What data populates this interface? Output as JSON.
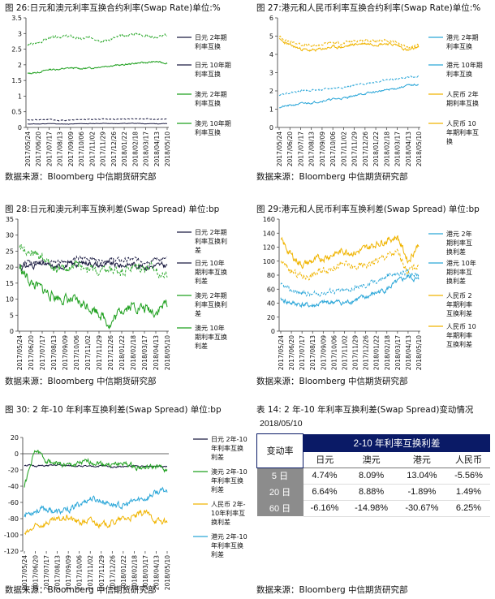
{
  "source_text": "数据来源：Bloomberg  中信期货研究部",
  "colors": {
    "jpy2": "#1a1a40",
    "jpy10": "#1a1a40",
    "aud2": "#1fa01f",
    "aud10": "#2faa2f",
    "hkd2": "#2aa6d8",
    "hkd10": "#2aa6d8",
    "cny2": "#f0b400",
    "cny10": "#f0b400",
    "grid": "#d9d9d9",
    "axis": "#333333"
  },
  "chart_data": [
    {
      "id": "c1",
      "type": "line",
      "title": "图 26:日元和澳元利率互换合约利率(Swap Rate)单位:%",
      "ylim": [
        0,
        3.5
      ],
      "yticks": [
        "0",
        "0.5",
        "1",
        "1.5",
        "2",
        "2.5",
        "3",
        "3.5"
      ],
      "ytick_values": [
        0,
        0.5,
        1,
        1.5,
        2,
        2.5,
        3,
        3.5
      ],
      "xlabels": [
        "2017/05/24",
        "2017/06/20",
        "2017/07/17",
        "2017/08/13",
        "2017/09/09",
        "2017/10/06",
        "2017/11/02",
        "2017/11/29",
        "2017/12/26",
        "2018/01/22",
        "2018/02/18",
        "2018/03/17",
        "2018/04/13",
        "2018/05/10"
      ],
      "series": [
        {
          "name": "日元 2年期利率互换",
          "style": "solid",
          "color_key": "jpy2",
          "n": 250,
          "anchors": [
            0.11,
            0.11,
            0.12,
            0.11,
            0.11,
            0.12,
            0.12,
            0.13,
            0.12,
            0.13,
            0.13,
            0.12,
            0.12,
            0.12
          ],
          "noise": 0.006,
          "seed": 11
        },
        {
          "name": "日元 10年期利率互换",
          "style": "dash",
          "color_key": "jpy10",
          "n": 250,
          "anchors": [
            0.25,
            0.23,
            0.26,
            0.22,
            0.24,
            0.26,
            0.25,
            0.27,
            0.26,
            0.27,
            0.28,
            0.27,
            0.26,
            0.26
          ],
          "noise": 0.012,
          "seed": 12
        },
        {
          "name": "澳元 2年期利率互换",
          "style": "solid",
          "color_key": "aud2",
          "n": 250,
          "anchors": [
            1.72,
            1.76,
            1.85,
            1.86,
            1.9,
            1.88,
            1.9,
            1.95,
            1.98,
            2.0,
            2.05,
            2.07,
            2.1,
            2.05
          ],
          "noise": 0.02,
          "seed": 13
        },
        {
          "name": "澳元 10年期利率互换",
          "style": "dash",
          "color_key": "aud10",
          "n": 250,
          "anchors": [
            2.62,
            2.7,
            2.85,
            2.9,
            2.9,
            2.82,
            2.88,
            2.75,
            2.85,
            2.92,
            3.0,
            2.93,
            2.88,
            2.95
          ],
          "noise": 0.035,
          "seed": 14
        }
      ]
    },
    {
      "id": "c2",
      "type": "line",
      "title": "图 27:港元和人民币利率互换合约利率(Swap Rate)单位:%",
      "ylim": [
        0,
        6
      ],
      "yticks": [
        "0",
        "1",
        "2",
        "3",
        "4",
        "5",
        "6"
      ],
      "ytick_values": [
        0,
        1,
        2,
        3,
        4,
        5,
        6
      ],
      "xlabels": [
        "2017/05/24",
        "2017/06/20",
        "2017/07/17",
        "2017/08/13",
        "2017/09/09",
        "2017/10/06",
        "2017/11/02",
        "2017/11/29",
        "2017/12/26",
        "2018/01/22",
        "2018/02/18",
        "2018/03/17",
        "2018/04/13",
        "2018/05/10"
      ],
      "series": [
        {
          "name": "港元 2年期利率互换",
          "style": "solid",
          "color_key": "hkd2",
          "n": 250,
          "anchors": [
            1.1,
            1.2,
            1.3,
            1.35,
            1.45,
            1.55,
            1.6,
            1.75,
            1.85,
            1.95,
            2.05,
            2.15,
            2.3,
            2.35
          ],
          "noise": 0.04,
          "seed": 21
        },
        {
          "name": "港元 10年期利率互换",
          "style": "dash",
          "color_key": "hkd10",
          "n": 250,
          "anchors": [
            1.8,
            1.9,
            2.0,
            2.05,
            2.05,
            2.15,
            2.2,
            2.3,
            2.4,
            2.5,
            2.6,
            2.65,
            2.75,
            2.8
          ],
          "noise": 0.04,
          "seed": 22
        },
        {
          "name": "人民币 2年期利率互换",
          "style": "solid",
          "color_key": "cny2",
          "n": 250,
          "anchors": [
            4.8,
            4.5,
            4.3,
            4.2,
            4.3,
            4.4,
            4.4,
            4.55,
            4.6,
            4.55,
            4.6,
            4.5,
            4.2,
            4.4
          ],
          "noise": 0.06,
          "seed": 23
        },
        {
          "name": "人民币 10年期利率互换",
          "style": "dash",
          "color_key": "cny10",
          "n": 250,
          "anchors": [
            4.95,
            4.7,
            4.55,
            4.45,
            4.55,
            4.65,
            4.6,
            4.75,
            4.8,
            4.7,
            4.75,
            4.65,
            4.35,
            4.55
          ],
          "noise": 0.06,
          "seed": 24
        }
      ]
    },
    {
      "id": "c3",
      "type": "line",
      "title": "图 28:日元和澳元利率互换利差(Swap Spread)    单位:bp",
      "ylim": [
        0,
        35
      ],
      "yticks": [
        "0",
        "5",
        "10",
        "15",
        "20",
        "25",
        "30",
        "35"
      ],
      "ytick_values": [
        0,
        5,
        10,
        15,
        20,
        25,
        30,
        35
      ],
      "xlabels": [
        "2017/05/24",
        "2017/06/20",
        "2017/07/17",
        "2017/08/13",
        "2017/09/09",
        "2017/10/06",
        "2017/11/02",
        "2017/11/29",
        "2017/12/26",
        "2018/01/22",
        "2018/02/18",
        "2018/03/17",
        "2018/04/13",
        "2018/05/10"
      ],
      "series": [
        {
          "name": "日元 2年期利率互换利差",
          "style": "solid",
          "color_key": "jpy2",
          "n": 250,
          "anchors": [
            20,
            20.5,
            21,
            20,
            20.5,
            21,
            21.5,
            20.5,
            21,
            20.5,
            21,
            20,
            20.5,
            20.5
          ],
          "noise": 0.7,
          "seed": 31
        },
        {
          "name": "日元 10年期利率互换利差",
          "style": "dash",
          "color_key": "jpy10",
          "n": 250,
          "anchors": [
            21,
            21.5,
            22,
            21.5,
            22,
            22.5,
            23,
            22,
            22.5,
            22,
            22.5,
            22,
            22.5,
            22.5
          ],
          "noise": 0.6,
          "seed": 32
        },
        {
          "name": "澳元 2年期利率互换利差",
          "style": "solid",
          "color_key": "aud2",
          "n": 250,
          "anchors": [
            20,
            15,
            13,
            11,
            10,
            9,
            8,
            6,
            2,
            7,
            8,
            7,
            6,
            9
          ],
          "noise": 1.3,
          "seed": 33
        },
        {
          "name": "澳元 10年期利率互换利差",
          "style": "dash",
          "color_key": "aud10",
          "n": 250,
          "anchors": [
            27,
            25,
            23,
            20,
            19,
            21,
            20,
            18,
            19,
            19,
            20,
            20,
            19,
            17
          ],
          "noise": 1.2,
          "seed": 34
        }
      ]
    },
    {
      "id": "c4",
      "type": "line",
      "title": "图 29:港元和人民币利率互换利差(Swap Spread)   单位:bp",
      "ylim": [
        0,
        160
      ],
      "yticks": [
        "0",
        "20",
        "40",
        "60",
        "80",
        "100",
        "120",
        "140",
        "160"
      ],
      "ytick_values": [
        0,
        20,
        40,
        60,
        80,
        100,
        120,
        140,
        160
      ],
      "xlabels": [
        "2017/05/24",
        "2017/06/20",
        "2017/07/17",
        "2017/08/13",
        "2017/09/09",
        "2017/10/06",
        "2017/11/02",
        "2017/11/29",
        "2017/12/26",
        "2018/01/22",
        "2018/02/18",
        "2018/03/17",
        "2018/04/13",
        "2018/05/10"
      ],
      "series": [
        {
          "name": "港元 2年期利率互换利差",
          "style": "solid",
          "color_key": "hkd2",
          "n": 250,
          "anchors": [
            45,
            40,
            38,
            36,
            40,
            42,
            40,
            45,
            48,
            55,
            60,
            70,
            78,
            72
          ],
          "noise": 3,
          "seed": 41
        },
        {
          "name": "港元 10年期利率互换利差",
          "style": "dash",
          "color_key": "hkd10",
          "n": 250,
          "anchors": [
            65,
            58,
            55,
            52,
            55,
            58,
            57,
            62,
            65,
            72,
            78,
            82,
            85,
            80
          ],
          "noise": 3,
          "seed": 42
        },
        {
          "name": "人民币 2年期利率互换利差",
          "style": "solid",
          "color_key": "cny2",
          "n": 250,
          "anchors": [
            130,
            108,
            95,
            100,
            105,
            110,
            115,
            112,
            118,
            125,
            130,
            135,
            100,
            125
          ],
          "noise": 4,
          "seed": 43
        },
        {
          "name": "人民币 10年期利率互换利差",
          "style": "dash",
          "color_key": "cny10",
          "n": 250,
          "anchors": [
            100,
            85,
            78,
            80,
            88,
            92,
            95,
            90,
            95,
            100,
            108,
            112,
            85,
            95
          ],
          "noise": 4,
          "seed": 44
        }
      ]
    },
    {
      "id": "c5",
      "type": "line",
      "title": "图 30: 2 年-10 年利率互换利差(Swap Spread)     单位:bp",
      "ylim": [
        -120,
        20
      ],
      "yticks": [
        "-120",
        "-100",
        "-80",
        "-60",
        "-40",
        "-20",
        "0",
        "20"
      ],
      "ytick_values": [
        -120,
        -100,
        -80,
        -60,
        -40,
        -20,
        0,
        20
      ],
      "xlabels": [
        "2017/05/24",
        "2017/06/20",
        "2017/07/17",
        "2017/08/13",
        "2017/09/09",
        "2017/10/06",
        "2017/11/02",
        "2017/11/29",
        "2017/12/26",
        "2018/01/22",
        "2018/02/18",
        "2018/03/17",
        "2018/04/13",
        "2018/05/10"
      ],
      "series": [
        {
          "name": "日元 2年-10年利率互换利差",
          "style": "solid",
          "color_key": "jpy2",
          "n": 250,
          "anchors": [
            -14,
            -15,
            -15,
            -14,
            -15,
            -15,
            -16,
            -15,
            -16,
            -16,
            -15,
            -16,
            -15,
            -15
          ],
          "noise": 0.8,
          "seed": 51
        },
        {
          "name": "澳元 2年-10年利率互换利差",
          "style": "solid",
          "color_key": "aud2",
          "n": 250,
          "anchors": [
            -40,
            5,
            -8,
            -12,
            -15,
            -12,
            -10,
            -12,
            -14,
            -12,
            -16,
            -18,
            -16,
            -20
          ],
          "noise": 2.5,
          "seed": 52
        },
        {
          "name": "港元 2年-10年利率互换利差",
          "style": "solid",
          "color_key": "hkd2",
          "n": 250,
          "anchors": [
            -75,
            -70,
            -68,
            -72,
            -70,
            -62,
            -55,
            -58,
            -62,
            -65,
            -58,
            -55,
            -48,
            -45
          ],
          "noise": 3,
          "seed": 53
        },
        {
          "name": "人民币 2年-10年利率互换利差",
          "style": "solid",
          "color_key": "cny2",
          "n": 250,
          "anchors": [
            -100,
            -90,
            -85,
            -82,
            -78,
            -85,
            -82,
            -88,
            -85,
            -80,
            -78,
            -72,
            -82,
            -85
          ],
          "noise": 3,
          "seed": 54
        }
      ]
    }
  ],
  "c1_legend": [
    "日元 2年期\n利率互换",
    "日元 10年期\n利率互换",
    "澳元 2年期\n利率互换",
    "澳元 10年期\n利率互换"
  ],
  "c2_legend": [
    "港元 2年期\n利率互换",
    "港元 10年期\n利率互换",
    "人民币 2年\n期利率互换",
    "人民币 10\n年期利率互\n换"
  ],
  "c3_legend": [
    "日元 2年期\n利率互换利\n差",
    "日元 10年\n期利率互换\n利差",
    "澳元 2年期\n利率互换利\n差",
    "澳元 10年\n期利率互换\n利差"
  ],
  "c4_legend": [
    "港元 2年\n期利率互\n换利差",
    "港元 10年\n期利率互\n换利差",
    "人民币 2\n年期利率\n互换利差",
    "人民币 10\n年期利率\n互换利差"
  ],
  "c5_legend": [
    "日元 2年-10\n年利率互换\n利差",
    "澳元 2年-10\n年利率互换\n利差",
    "人民币 2年-\n10年利率互\n换利差",
    "港元 2年-10\n年利率互换\n利差"
  ],
  "c5_xlabels": [
    "2017/05/24",
    "2017/06/20",
    "2017/07/17",
    "2017/08/13",
    "2017/09/09",
    "2017/10/06",
    "2017/11/02",
    "2017/11/29",
    "2017/12/26",
    "2018/01/22",
    "2018/02/18",
    "2018/03/17",
    "2018/04/13",
    "2018/05/10"
  ],
  "table": {
    "title": "表 14: 2 年-10 年利率互换利差(Swap Spread)变动情况",
    "date": "2018/05/10",
    "corner": "变动率",
    "header": "2-10 年利率互换利差",
    "columns": [
      "日元",
      "澳元",
      "港元",
      "人民币"
    ],
    "rows": [
      {
        "label": "5 日",
        "values": [
          "4.74%",
          "8.09%",
          "13.04%",
          "-5.56%"
        ]
      },
      {
        "label": "20 日",
        "values": [
          "6.64%",
          "8.88%",
          "-1.89%",
          "1.49%"
        ]
      },
      {
        "label": "60 日",
        "values": [
          "-6.16%",
          "-14.98%",
          "-30.67%",
          "6.25%"
        ]
      }
    ]
  }
}
